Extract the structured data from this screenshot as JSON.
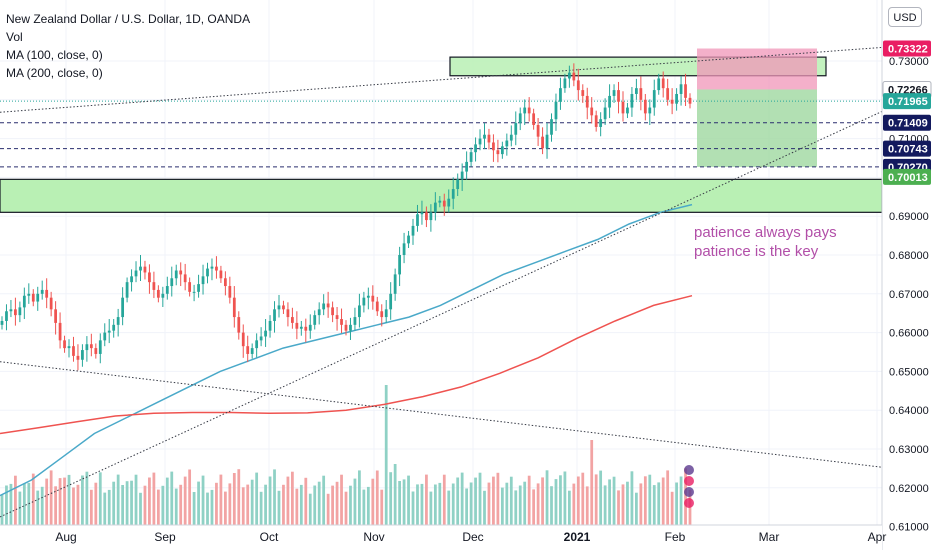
{
  "header": {
    "symbol_title": "New Zealand Dollar / U.S. Dollar, 1D, OANDA",
    "vol_label": "Vol",
    "ma100_label": "MA (100, close, 0)",
    "ma200_label": "MA (200, close, 0)",
    "currency_button": "USD"
  },
  "annotation": {
    "line1": "patience always pays",
    "line2": "patience is the key",
    "color": "#b24fa8"
  },
  "colors": {
    "up": "#26a69a",
    "down": "#ef5350",
    "up_vol": "#8fd1c5",
    "down_vol": "#f2a3a3",
    "ma100": "#4aa9c9",
    "ma200": "#ef5350",
    "zone_fill": "#b9f0b4",
    "target_fill": "#9fd8a0",
    "stop_fill": "#f095b8",
    "dashed_line": "#2a2e6e"
  },
  "chart_data": {
    "type": "candlestick",
    "instrument": "NZDUSD",
    "timeframe": "1D",
    "x_ticks": [
      "Aug",
      "Sep",
      "Oct",
      "Nov",
      "Dec",
      "2021",
      "Feb",
      "Mar",
      "Apr"
    ],
    "y_ticks": [
      "0.73000",
      "0.72000",
      "0.71000",
      "0.70000",
      "0.69000",
      "0.68000",
      "0.67000",
      "0.66000",
      "0.65000",
      "0.64000",
      "0.63000",
      "0.62000",
      "0.61000"
    ],
    "ylim": [
      0.6075,
      0.7375
    ],
    "price_labels": [
      {
        "value": 0.73322,
        "text": "0.73322",
        "bg": "#e91e63",
        "fg": "#ffffff"
      },
      {
        "value": 0.72266,
        "text": "0.72266",
        "bg": "#ffffff",
        "fg": "#131722",
        "border": "#b2b5be"
      },
      {
        "value": 0.71965,
        "text": "0.71965",
        "bg": "#26a69a",
        "fg": "#ffffff"
      },
      {
        "value": 0.71409,
        "text": "0.71409",
        "bg": "#131a5e",
        "fg": "#ffffff"
      },
      {
        "value": 0.70743,
        "text": "0.70743",
        "bg": "#131a5e",
        "fg": "#ffffff"
      },
      {
        "value": 0.7027,
        "text": "0.70270",
        "bg": "#131a5e",
        "fg": "#ffffff"
      },
      {
        "value": 0.70013,
        "text": "0.70013",
        "bg": "#4caf50",
        "fg": "#ffffff"
      }
    ],
    "dashed_levels": [
      0.71409,
      0.70743,
      0.7027
    ],
    "dotted_level": 0.71965,
    "zones": [
      {
        "from": 0.691,
        "to": 0.6995,
        "start": "Jul",
        "end": "Apr"
      },
      {
        "from": 0.7262,
        "to": 0.731,
        "start": "Nov end",
        "end": "Feb end"
      }
    ],
    "long_position": {
      "entry": 0.72266,
      "target": 0.73322,
      "stop": 0.7027
    },
    "trendlines": [
      {
        "from": [
          0,
          0.7168
        ],
        "to": [
          1,
          0.7335
        ]
      },
      {
        "from": [
          0,
          0.6525
        ],
        "to": [
          1,
          0.6253
        ]
      },
      {
        "from": [
          0,
          0.6125
        ],
        "to": [
          1,
          0.717
        ]
      }
    ],
    "ma100": [
      0.618,
      0.622,
      0.628,
      0.634,
      0.638,
      0.642,
      0.646,
      0.65,
      0.653,
      0.656,
      0.658,
      0.66,
      0.662,
      0.664,
      0.667,
      0.671,
      0.675,
      0.678,
      0.681,
      0.684,
      0.688,
      0.691,
      0.693
    ],
    "ma200": [
      0.634,
      0.6355,
      0.637,
      0.6385,
      0.6392,
      0.6394,
      0.6394,
      0.6392,
      0.6393,
      0.64,
      0.6415,
      0.6435,
      0.646,
      0.6495,
      0.6535,
      0.6585,
      0.663,
      0.667,
      0.6695
    ],
    "closes": [
      0.663,
      0.6655,
      0.666,
      0.6645,
      0.6665,
      0.6695,
      0.67,
      0.668,
      0.67,
      0.671,
      0.669,
      0.666,
      0.6625,
      0.658,
      0.656,
      0.6565,
      0.654,
      0.653,
      0.6555,
      0.657,
      0.656,
      0.6545,
      0.658,
      0.66,
      0.6605,
      0.662,
      0.664,
      0.669,
      0.673,
      0.6745,
      0.676,
      0.677,
      0.6755,
      0.673,
      0.671,
      0.669,
      0.67,
      0.672,
      0.674,
      0.676,
      0.675,
      0.673,
      0.6705,
      0.6705,
      0.6725,
      0.6745,
      0.6765,
      0.677,
      0.676,
      0.674,
      0.672,
      0.669,
      0.664,
      0.66,
      0.6565,
      0.6545,
      0.656,
      0.658,
      0.659,
      0.6605,
      0.663,
      0.666,
      0.667,
      0.666,
      0.664,
      0.6625,
      0.661,
      0.6615,
      0.6605,
      0.662,
      0.6645,
      0.666,
      0.6675,
      0.6665,
      0.6645,
      0.6635,
      0.662,
      0.6605,
      0.662,
      0.664,
      0.667,
      0.669,
      0.6695,
      0.668,
      0.6655,
      0.664,
      0.666,
      0.67,
      0.675,
      0.68,
      0.683,
      0.685,
      0.6875,
      0.6905,
      0.691,
      0.689,
      0.691,
      0.6935,
      0.694,
      0.6925,
      0.6945,
      0.697,
      0.6995,
      0.7015,
      0.704,
      0.7065,
      0.7085,
      0.71,
      0.711,
      0.709,
      0.707,
      0.706,
      0.708,
      0.7095,
      0.711,
      0.714,
      0.7165,
      0.718,
      0.7165,
      0.7135,
      0.7105,
      0.7075,
      0.711,
      0.715,
      0.7195,
      0.723,
      0.7255,
      0.727,
      0.725,
      0.7225,
      0.721,
      0.718,
      0.716,
      0.713,
      0.715,
      0.718,
      0.721,
      0.7225,
      0.7195,
      0.7165,
      0.718,
      0.7215,
      0.723,
      0.72,
      0.7165,
      0.718,
      0.7225,
      0.7255,
      0.723,
      0.72,
      0.719,
      0.7215,
      0.724,
      0.7205,
      0.719
    ]
  }
}
